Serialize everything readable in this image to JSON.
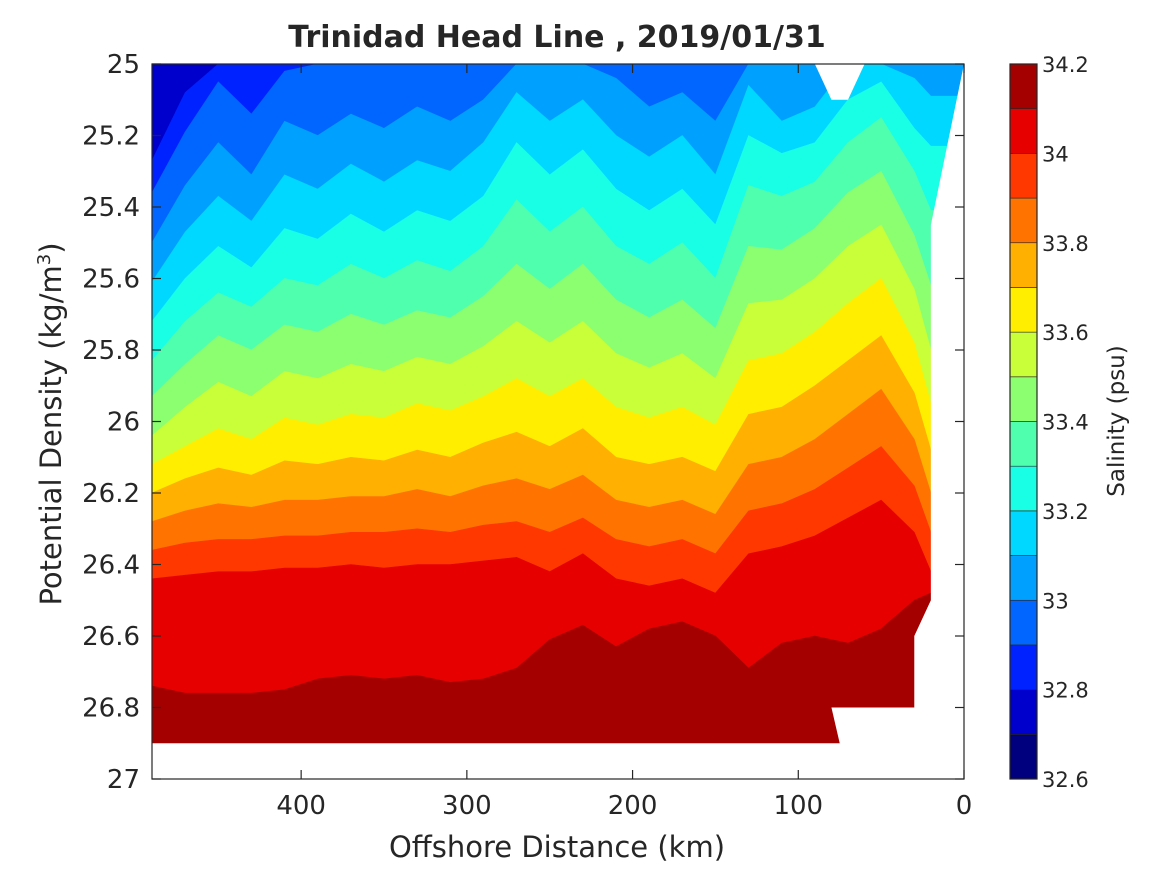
{
  "chart_data": {
    "type": "contour",
    "title": "Trinidad Head Line , 2019/01/31",
    "xlabel": "Offshore Distance (km)",
    "ylabel_main": "Potential Density (kg/m",
    "ylabel_sup": "3",
    "ylabel_end": ")",
    "xlim": [
      490,
      0
    ],
    "ylim": [
      25,
      27
    ],
    "x_ticks": [
      "400",
      "300",
      "200",
      "100",
      "0"
    ],
    "y_ticks": [
      "25",
      "25.2",
      "25.4",
      "25.6",
      "25.8",
      "26",
      "26.2",
      "26.4",
      "26.6",
      "26.8",
      "27"
    ],
    "x_axis_reversed": true,
    "y_axis_reversed": true,
    "colorbar": {
      "label": "Salinity (psu)",
      "range": [
        32.6,
        34.2
      ],
      "ticks": [
        "34.2",
        "34",
        "33.8",
        "33.6",
        "33.4",
        "33.2",
        "33",
        "32.8",
        "32.6"
      ],
      "levels": [
        32.6,
        32.7,
        32.8,
        32.9,
        33.0,
        33.1,
        33.2,
        33.3,
        33.4,
        33.5,
        33.6,
        33.7,
        33.8,
        33.9,
        34.0,
        34.1,
        34.2
      ],
      "colormap": "jet",
      "colors": [
        "#00007f",
        "#0000cc",
        "#0022ff",
        "#0066ff",
        "#00a0ff",
        "#00d8ff",
        "#18ffe6",
        "#50ffae",
        "#8cff70",
        "#c8ff38",
        "#ffee00",
        "#ffb000",
        "#ff7400",
        "#ff3800",
        "#e60000",
        "#a40000"
      ]
    },
    "contour_lines": {
      "x": [
        490,
        470,
        450,
        430,
        410,
        390,
        370,
        350,
        330,
        310,
        290,
        270,
        250,
        230,
        210,
        190,
        170,
        150,
        130,
        110,
        90,
        70,
        50,
        30,
        20
      ],
      "levels": [
        32.7,
        32.8,
        32.9,
        33.0,
        33.1,
        33.2,
        33.3,
        33.4,
        33.5,
        33.6,
        33.7,
        33.8,
        33.9,
        34.0,
        34.1
      ],
      "density": [
        [
          25.27,
          25.08,
          25.0,
          25.0,
          25.0,
          25.0,
          25.0,
          25.0,
          25.0,
          25.0,
          25.0,
          25.0,
          25.0,
          25.0,
          25.0,
          25.0,
          25.0,
          25.0,
          25.0,
          25.0,
          25.0,
          25.0,
          25.0,
          25.0,
          25.0
        ],
        [
          25.36,
          25.19,
          25.05,
          25.14,
          25.02,
          25.0,
          25.0,
          25.0,
          25.0,
          25.0,
          25.0,
          25.0,
          25.0,
          25.0,
          25.0,
          25.0,
          25.0,
          25.0,
          25.0,
          25.0,
          25.0,
          25.0,
          25.0,
          25.0,
          25.0
        ],
        [
          25.5,
          25.34,
          25.22,
          25.31,
          25.16,
          25.2,
          25.14,
          25.18,
          25.12,
          25.16,
          25.1,
          25.0,
          25.0,
          25.0,
          25.04,
          25.12,
          25.08,
          25.16,
          25.0,
          25.0,
          25.0,
          25.0,
          25.0,
          25.0,
          25.0
        ],
        [
          25.61,
          25.47,
          25.37,
          25.44,
          25.31,
          25.35,
          25.28,
          25.33,
          25.27,
          25.3,
          25.22,
          25.08,
          25.16,
          25.1,
          25.2,
          25.26,
          25.2,
          25.31,
          25.06,
          25.16,
          25.12,
          25.0,
          25.0,
          25.04,
          25.09
        ],
        [
          25.72,
          25.6,
          25.51,
          25.57,
          25.46,
          25.49,
          25.42,
          25.47,
          25.41,
          25.44,
          25.37,
          25.22,
          25.31,
          25.24,
          25.35,
          25.41,
          25.35,
          25.45,
          25.2,
          25.25,
          25.22,
          25.1,
          25.05,
          25.18,
          25.23
        ],
        [
          25.83,
          25.72,
          25.64,
          25.68,
          25.6,
          25.62,
          25.56,
          25.6,
          25.55,
          25.58,
          25.51,
          25.38,
          25.47,
          25.4,
          25.51,
          25.56,
          25.5,
          25.6,
          25.34,
          25.37,
          25.33,
          25.22,
          25.15,
          25.3,
          25.41
        ],
        [
          25.93,
          25.84,
          25.76,
          25.8,
          25.73,
          25.75,
          25.7,
          25.73,
          25.69,
          25.71,
          25.65,
          25.56,
          25.63,
          25.56,
          25.66,
          25.71,
          25.66,
          25.74,
          25.51,
          25.52,
          25.46,
          25.36,
          25.3,
          25.48,
          25.62
        ],
        [
          26.04,
          25.96,
          25.89,
          25.93,
          25.86,
          25.88,
          25.84,
          25.86,
          25.82,
          25.84,
          25.79,
          25.72,
          25.78,
          25.72,
          25.81,
          25.85,
          25.81,
          25.88,
          25.67,
          25.66,
          25.6,
          25.51,
          25.45,
          25.63,
          25.8
        ],
        [
          26.12,
          26.07,
          26.02,
          26.05,
          25.99,
          26.01,
          25.98,
          25.99,
          25.95,
          25.97,
          25.93,
          25.88,
          25.93,
          25.88,
          25.96,
          25.99,
          25.96,
          26.01,
          25.83,
          25.81,
          25.75,
          25.67,
          25.6,
          25.78,
          25.95
        ],
        [
          26.2,
          26.16,
          26.13,
          26.15,
          26.11,
          26.12,
          26.1,
          26.11,
          26.08,
          26.1,
          26.06,
          26.03,
          26.07,
          26.02,
          26.1,
          26.12,
          26.1,
          26.14,
          25.98,
          25.96,
          25.9,
          25.83,
          25.76,
          25.92,
          26.08
        ],
        [
          26.28,
          26.25,
          26.23,
          26.24,
          26.22,
          26.22,
          26.21,
          26.21,
          26.19,
          26.21,
          26.18,
          26.16,
          26.19,
          26.15,
          26.22,
          26.24,
          26.22,
          26.26,
          26.12,
          26.1,
          26.05,
          25.98,
          25.91,
          26.05,
          26.2
        ],
        [
          26.36,
          26.34,
          26.33,
          26.33,
          26.32,
          26.32,
          26.31,
          26.31,
          26.3,
          26.31,
          26.29,
          26.28,
          26.31,
          26.27,
          26.33,
          26.35,
          26.33,
          26.37,
          26.25,
          26.23,
          26.19,
          26.13,
          26.07,
          26.18,
          26.31
        ],
        [
          26.44,
          26.43,
          26.42,
          26.42,
          26.41,
          26.41,
          26.4,
          26.41,
          26.4,
          26.4,
          26.39,
          26.38,
          26.42,
          26.37,
          26.44,
          26.46,
          26.44,
          26.48,
          26.37,
          26.35,
          26.32,
          26.27,
          26.22,
          26.31,
          26.42
        ],
        [
          26.74,
          26.76,
          26.76,
          26.76,
          26.75,
          26.72,
          26.71,
          26.72,
          26.71,
          26.73,
          26.72,
          26.69,
          26.61,
          26.57,
          26.63,
          26.58,
          26.56,
          26.6,
          26.69,
          26.62,
          26.6,
          26.62,
          26.58,
          26.5,
          26.48
        ],
        [
          27.0,
          27.0,
          27.0,
          27.0,
          27.0,
          27.0,
          27.0,
          27.0,
          27.0,
          27.0,
          27.0,
          27.0,
          27.0,
          27.0,
          26.94,
          26.83,
          26.8,
          26.89,
          27.0,
          27.0,
          27.0,
          27.0,
          27.0,
          27.0,
          27.0
        ]
      ]
    },
    "masked_regions": [
      {
        "x": [
          90,
          80,
          70,
          60
        ],
        "y": [
          25.0,
          25.1,
          25.1,
          25.0
        ]
      },
      {
        "x": [
          20,
          20,
          30,
          30,
          80,
          70,
          0,
          0
        ],
        "y": [
          25.45,
          26.5,
          26.6,
          26.8,
          26.8,
          27.0,
          27.0,
          25.0
        ]
      },
      {
        "x": [
          490,
          490,
          70,
          70
        ],
        "y": [
          26.9,
          27.0,
          27.0,
          26.9
        ]
      }
    ]
  }
}
